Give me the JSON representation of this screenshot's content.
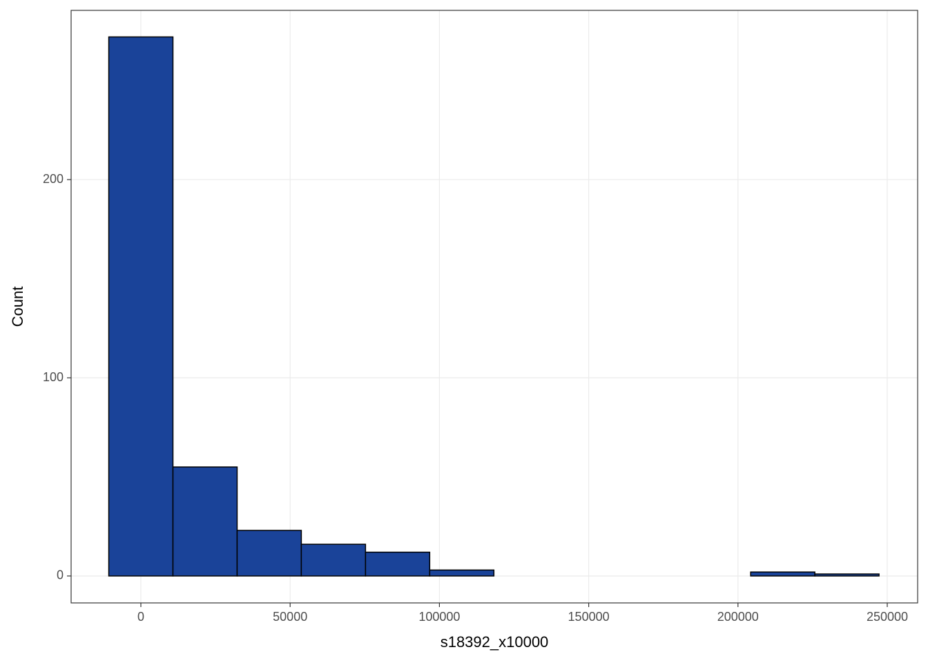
{
  "chart_data": {
    "type": "histogram",
    "x_label": "s18392_x10000",
    "y_label": "Count",
    "bins": [
      -10750,
      10750,
      32250,
      53750,
      75250,
      96750,
      118250,
      139750,
      161250,
      182750,
      204250,
      225750,
      247250
    ],
    "counts": [
      272,
      55,
      23,
      16,
      12,
      3,
      0,
      0,
      0,
      0,
      2,
      1
    ],
    "color": "#1a4399",
    "edge_color": "#000000",
    "xlim": [
      -23360,
      260180
    ],
    "xticks": [
      0,
      50000,
      100000,
      150000,
      200000,
      250000
    ],
    "ylim": [
      -13.6,
      285.4
    ],
    "yticks": [
      0,
      100,
      200
    ],
    "grid": true
  }
}
